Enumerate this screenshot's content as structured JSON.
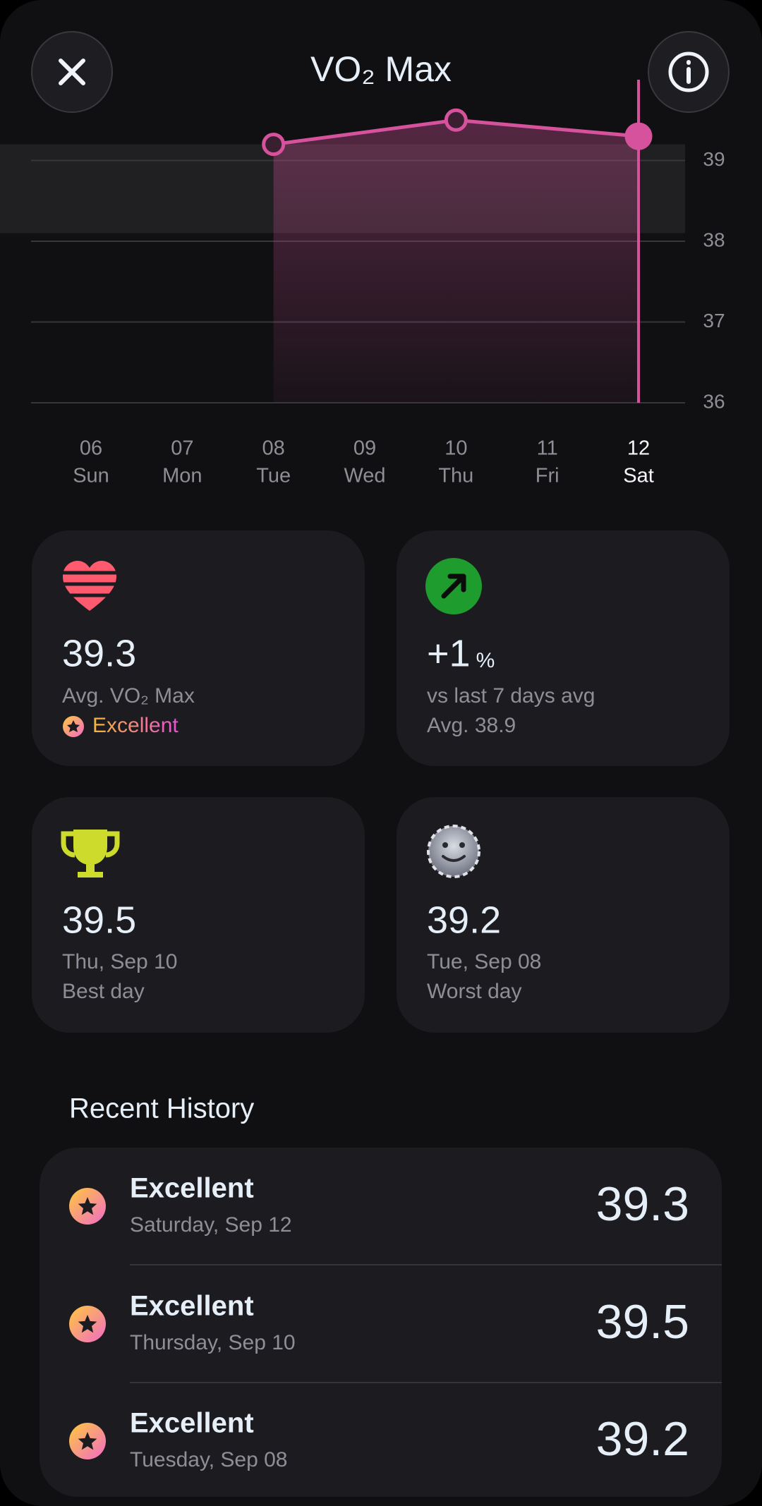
{
  "header": {
    "title": "VO₂ Max"
  },
  "chart_data": {
    "type": "line",
    "x": [
      8,
      10,
      12
    ],
    "values": [
      39.2,
      39.5,
      39.3
    ],
    "color": "#d6529c",
    "xlim": [
      6,
      12
    ],
    "xticks": [
      {
        "value": 6,
        "label": "06"
      },
      {
        "value": 7,
        "label": "07"
      },
      {
        "value": 8,
        "label": "08"
      },
      {
        "value": 9,
        "label": "09"
      },
      {
        "value": 10,
        "label": "10"
      },
      {
        "value": 11,
        "label": "11"
      },
      {
        "value": 12,
        "label": "12"
      }
    ],
    "xtick_sublabels": [
      "Sun",
      "Mon",
      "Tue",
      "Wed",
      "Thu",
      "Fri",
      "Sat"
    ],
    "ylim": [
      36,
      40
    ],
    "yticks": [
      36,
      37,
      38,
      39
    ],
    "grid": true,
    "reference_band": [
      38.1,
      39.2
    ],
    "selected_x": 12
  },
  "stats": {
    "average": {
      "value": 39.3,
      "label": "Avg. VO₂ Max",
      "rating": "Excellent"
    },
    "change": {
      "value": "+1",
      "unit": "%",
      "label": "vs last 7 days avg",
      "note": "Avg. 38.9"
    },
    "best": {
      "value": 39.5,
      "date": "Thu, Sep 10",
      "label": "Best day"
    },
    "worst": {
      "value": 39.2,
      "date": "Tue, Sep 08",
      "label": "Worst day"
    }
  },
  "history": {
    "title": "Recent History",
    "rows": [
      {
        "rating": "Excellent",
        "date": "Saturday, Sep 12",
        "value": 39.3
      },
      {
        "rating": "Excellent",
        "date": "Thursday, Sep 10",
        "value": 39.5
      },
      {
        "rating": "Excellent",
        "date": "Tuesday, Sep 08",
        "value": 39.2
      }
    ]
  }
}
